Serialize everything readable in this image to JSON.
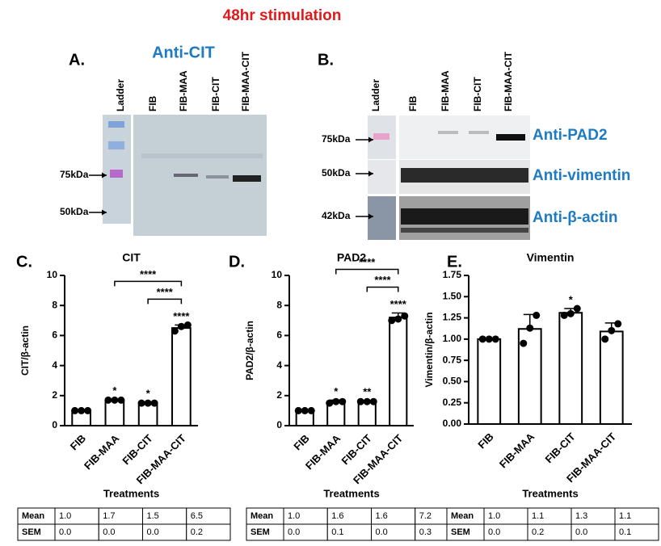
{
  "title": "48hr stimulation",
  "panel_a": {
    "letter": "A.",
    "antibody": "Anti-CIT",
    "lanes": [
      "Ladder",
      "FIB",
      "FIB-MAA",
      "FIB-CIT",
      "FIB-MAA-CIT"
    ],
    "markers": [
      "75kDa",
      "50kDa"
    ]
  },
  "panel_b": {
    "letter": "B.",
    "lanes": [
      "Ladder",
      "FIB",
      "FIB-MAA",
      "FIB-CIT",
      "FIB-MAA-CIT"
    ],
    "rows": [
      {
        "marker": "75kDa",
        "antibody": "Anti-PAD2"
      },
      {
        "marker": "50kDa",
        "antibody": "Anti-vimentin"
      },
      {
        "marker": "42kDa",
        "antibody": "Anti-β-actin"
      }
    ]
  },
  "chart_data": [
    {
      "type": "bar",
      "panel": "C.",
      "title": "CIT",
      "y_label": "CIT/β-actin",
      "x_label": "Treatments",
      "categories": [
        "FIB",
        "FIB-MAA",
        "FIB-CIT",
        "FIB-MAA-CIT"
      ],
      "values": [
        1.0,
        1.7,
        1.5,
        6.5
      ],
      "errors": [
        0,
        0.05,
        0.05,
        0.2
      ],
      "points": [
        [
          1,
          1,
          1
        ],
        [
          1.7,
          1.7,
          1.7
        ],
        [
          1.5,
          1.5,
          1.5
        ],
        [
          6.3,
          6.6,
          6.7
        ]
      ],
      "significance": [
        null,
        "*",
        "*",
        "****"
      ],
      "brackets": [
        {
          "label": "****",
          "from": "FIB-MAA",
          "to": "FIB-MAA-CIT"
        },
        {
          "label": "****",
          "from": "FIB-CIT",
          "to": "FIB-MAA-CIT"
        }
      ],
      "ylim": [
        0,
        10
      ],
      "yticks": [
        0,
        2,
        4,
        6,
        8,
        10
      ],
      "table": [
        [
          "Mean",
          "1.0",
          "1.7",
          "1.5",
          "6.5"
        ],
        [
          "SEM",
          "0.0",
          "0.0",
          "0.0",
          "0.2"
        ]
      ]
    },
    {
      "type": "bar",
      "panel": "D.",
      "title": "PAD2",
      "y_label": "PAD2/β-actin",
      "x_label": "Treatments",
      "categories": [
        "FIB",
        "FIB-MAA",
        "FIB-CIT",
        "FIB-MAA-CIT"
      ],
      "values": [
        1.0,
        1.6,
        1.6,
        7.2
      ],
      "errors": [
        0,
        0.1,
        0.05,
        0.3
      ],
      "points": [
        [
          1,
          1,
          1
        ],
        [
          1.5,
          1.6,
          1.6
        ],
        [
          1.6,
          1.6,
          1.6
        ],
        [
          7.0,
          7.1,
          7.3
        ]
      ],
      "significance": [
        null,
        "*",
        "**",
        "****"
      ],
      "brackets": [
        {
          "label": "****",
          "from": "FIB-MAA",
          "to": "FIB-MAA-CIT"
        },
        {
          "label": "****",
          "from": "FIB-CIT",
          "to": "FIB-MAA-CIT"
        }
      ],
      "ylim": [
        0,
        10
      ],
      "yticks": [
        0,
        2,
        4,
        6,
        8,
        10
      ],
      "table": [
        [
          "Mean",
          "1.0",
          "1.6",
          "1.6",
          "7.2"
        ],
        [
          "SEM",
          "0.0",
          "0.1",
          "0.0",
          "0.3"
        ]
      ]
    },
    {
      "type": "bar",
      "panel": "E.",
      "title": "Vimentin",
      "y_label": "Vimentin/β-actin",
      "x_label": "Treatments",
      "categories": [
        "FIB",
        "FIB-MAA",
        "FIB-CIT",
        "FIB-MAA-CIT"
      ],
      "values": [
        1.0,
        1.12,
        1.31,
        1.09
      ],
      "errors": [
        0,
        0.17,
        0.05,
        0.1
      ],
      "points": [
        [
          1,
          1,
          1
        ],
        [
          0.95,
          1.13,
          1.28
        ],
        [
          1.28,
          1.3,
          1.36
        ],
        [
          1.0,
          1.1,
          1.18
        ]
      ],
      "significance": [
        null,
        null,
        "*",
        null
      ],
      "brackets": [],
      "ylim": [
        0,
        1.75
      ],
      "yticks": [
        {
          "value": 0,
          "label": "0.00"
        },
        {
          "value": 0.25,
          "label": "0.25"
        },
        {
          "value": 0.5,
          "label": "0.50"
        },
        {
          "value": 0.75,
          "label": "0.75"
        },
        {
          "value": 1,
          "label": "1.00"
        },
        {
          "value": 1.25,
          "label": "1.25"
        },
        {
          "value": 1.5,
          "label": "1.50"
        },
        {
          "value": 1.75,
          "label": "1.75"
        }
      ],
      "table": [
        [
          "Mean",
          "1.0",
          "1.1",
          "1.3",
          "1.1"
        ],
        [
          "SEM",
          "0.0",
          "0.2",
          "0.0",
          "0.1"
        ]
      ]
    }
  ]
}
